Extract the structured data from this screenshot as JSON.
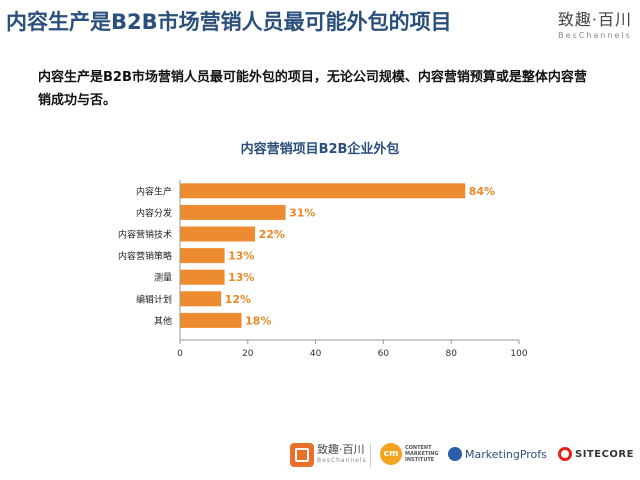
{
  "header": {
    "title": "内容生产是B2B市场营销人员最可能外包的项目",
    "brand_cn": "致趣·百川",
    "brand_en": "BesChannels"
  },
  "intro_text": "内容生产是B2B市场营销人员最可能外包的项目，无论公司规模、内容营销预算或是整体内容营销成功与否。",
  "chart_data": {
    "type": "bar",
    "orientation": "horizontal",
    "title": "内容营销项目B2B企业外包",
    "categories": [
      "内容生产",
      "内容分发",
      "内容营销技术",
      "内容营销策略",
      "测量",
      "编辑计划",
      "其他"
    ],
    "values": [
      84,
      31,
      22,
      13,
      13,
      12,
      18
    ],
    "value_labels": [
      "84%",
      "31%",
      "22%",
      "13%",
      "13%",
      "12%",
      "18%"
    ],
    "xlim": [
      0,
      100
    ],
    "xticks": [
      "0",
      "20",
      "40",
      "60",
      "80",
      "100"
    ],
    "bar_color": "#ec8b2f",
    "label_color": "#e8892a",
    "grid": false
  },
  "footer": {
    "logo1_cn": "致趣·百川",
    "logo1_en": "BesChannels",
    "logo2_mark": "cm",
    "logo2_text": "CONTENT MARKETING INSTITUTE",
    "logo3": "MarketingProfs",
    "logo4": "SITECORE"
  }
}
